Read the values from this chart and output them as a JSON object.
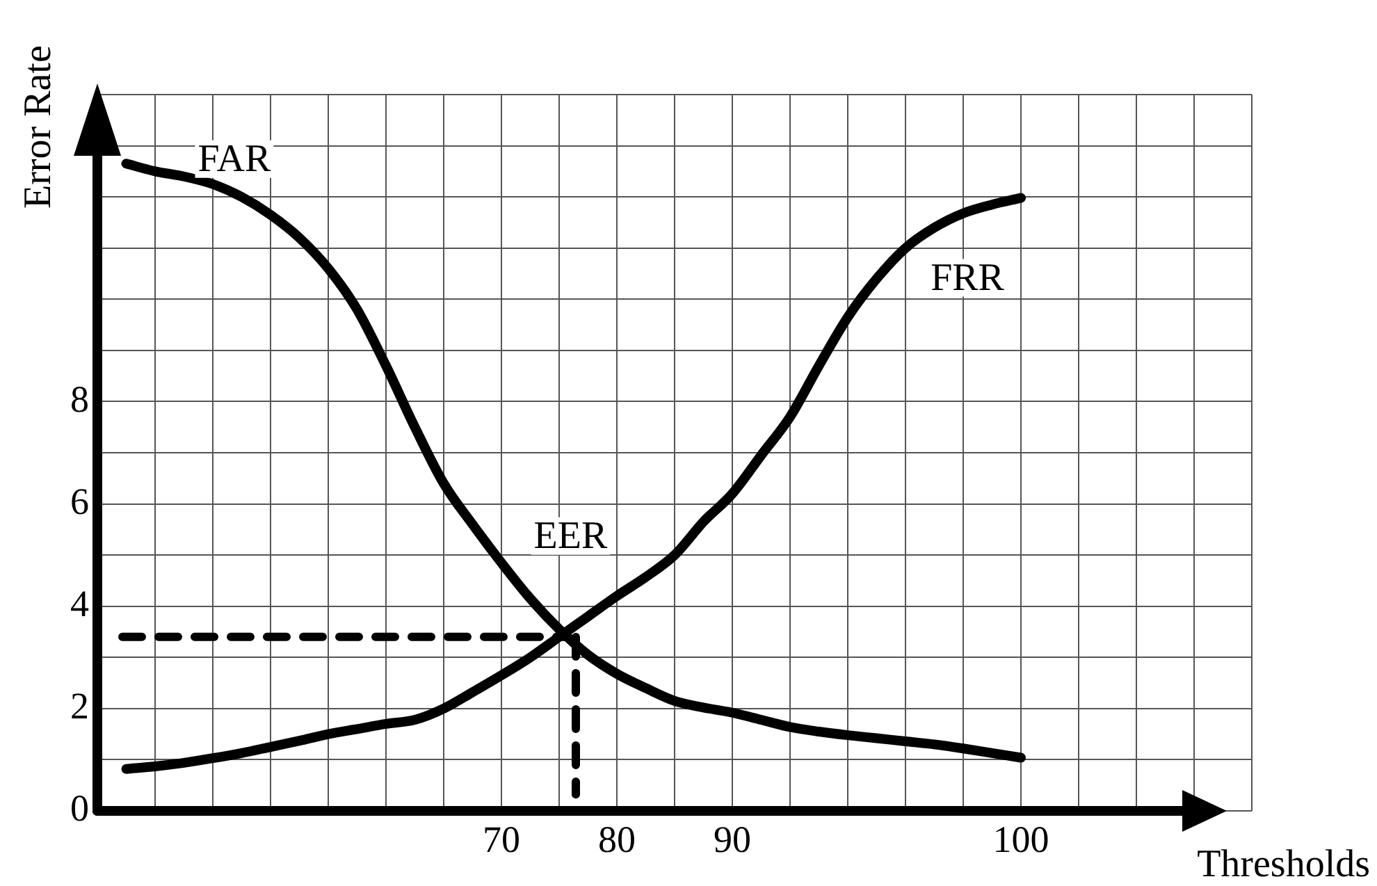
{
  "chart_data": {
    "type": "line",
    "xlabel": "Thresholds",
    "ylabel": "Error Rate",
    "categories": [
      null,
      null,
      null,
      null,
      null,
      null,
      null,
      null,
      null,
      null,
      null,
      null,
      null,
      null,
      "70",
      null,
      null,
      null,
      "80",
      null,
      null,
      null,
      "90",
      null,
      null,
      null,
      null,
      null,
      null,
      null,
      null,
      null,
      "100",
      null,
      null,
      null,
      null,
      null,
      null,
      null,
      null
    ],
    "ylim": [
      0,
      14
    ],
    "yticks": [
      0,
      {
        "value": 1,
        "label": null
      },
      2,
      {
        "value": 3,
        "label": null
      },
      4,
      {
        "value": 5,
        "label": null
      },
      6,
      {
        "value": 7,
        "label": null
      },
      8,
      {
        "value": 9,
        "label": null
      },
      {
        "value": 10,
        "label": null
      },
      {
        "value": 11,
        "label": null
      },
      {
        "value": 12,
        "label": null
      },
      {
        "value": 13,
        "label": null
      },
      {
        "value": 14,
        "label": null
      }
    ],
    "grid": true,
    "legend": false,
    "marker": "none",
    "line_style": "solid",
    "series": [
      {
        "name": "FAR",
        "color": "#000000",
        "values": [
          null,
          12.65,
          12.5,
          12.4,
          12.25,
          12.0,
          11.65,
          11.2,
          10.6,
          9.8,
          8.7,
          7.5,
          6.4,
          5.6,
          4.85,
          4.15,
          3.55,
          3.05,
          2.68,
          2.4,
          2.15,
          2.02,
          1.92,
          1.78,
          1.64,
          1.55,
          1.48,
          1.42,
          1.36,
          1.3,
          1.22,
          1.13,
          1.04,
          null,
          null,
          null,
          null,
          null,
          null,
          null,
          null
        ]
      },
      {
        "name": "FRR",
        "color": "#000000",
        "values": [
          null,
          0.82,
          0.87,
          0.94,
          1.03,
          1.13,
          1.25,
          1.37,
          1.5,
          1.6,
          1.7,
          1.78,
          2.0,
          2.32,
          2.65,
          3.0,
          3.4,
          3.8,
          4.2,
          4.57,
          5.0,
          5.65,
          6.2,
          6.95,
          7.7,
          8.7,
          9.65,
          10.4,
          11.0,
          11.4,
          11.68,
          11.85,
          11.98,
          null,
          null,
          null,
          null,
          null,
          null,
          null,
          null
        ]
      }
    ],
    "ref_lines": [
      {
        "axis": "y",
        "value": 3.4,
        "line_style": "dashed"
      }
    ],
    "annotations": [
      "EER"
    ]
  }
}
